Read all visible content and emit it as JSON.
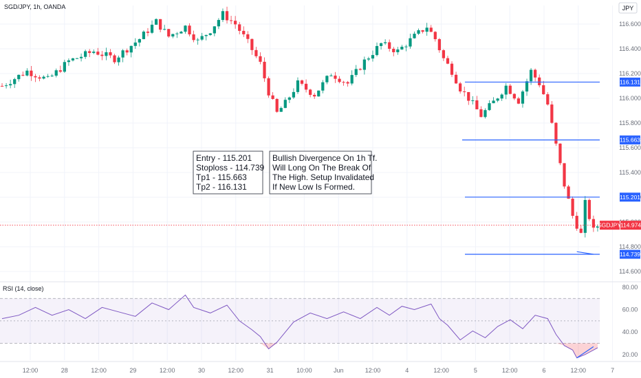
{
  "chart_data": [
    {
      "type": "candlestick",
      "title": "SGD/JPY, 1h, OANDA",
      "currency_button": "JPY",
      "ylim": [
        114.55,
        116.75
      ],
      "y_ticks": [
        114.6,
        114.8,
        115.0,
        115.2,
        115.4,
        115.6,
        115.8,
        116.0,
        116.2,
        116.4,
        116.6
      ],
      "y_tick_labels": [
        "114.600",
        "114.800",
        "115.000",
        "115.200",
        "115.400",
        "115.600",
        "115.800",
        "116.000",
        "116.200",
        "116.400",
        "116.600"
      ],
      "x_tick_labels": [
        "12:00",
        "28",
        "12:00",
        "29",
        "12:00",
        "30",
        "12:00",
        "31",
        "10:00",
        "Jun",
        "12:00",
        "4",
        "12:00",
        "5",
        "12:00",
        "6",
        "12:00",
        "7"
      ],
      "colors": {
        "up": "#089981",
        "down": "#f23645",
        "level": "#2962ff",
        "current": "#f23645"
      },
      "close_path": [
        [
          0,
          116.1
        ],
        [
          6,
          116.22
        ],
        [
          11,
          116.15
        ],
        [
          16,
          116.3
        ],
        [
          22,
          116.38
        ],
        [
          27,
          116.32
        ],
        [
          33,
          116.48
        ],
        [
          37,
          116.62
        ],
        [
          40,
          116.5
        ],
        [
          44,
          116.58
        ],
        [
          47,
          116.46
        ],
        [
          50,
          116.55
        ],
        [
          53,
          116.68
        ],
        [
          56,
          116.6
        ],
        [
          59,
          116.45
        ],
        [
          62,
          116.28
        ],
        [
          64,
          116.05
        ],
        [
          66,
          115.88
        ],
        [
          68,
          115.96
        ],
        [
          71,
          116.12
        ],
        [
          75,
          116.03
        ],
        [
          79,
          116.2
        ],
        [
          83,
          116.12
        ],
        [
          87,
          116.3
        ],
        [
          91,
          116.44
        ],
        [
          95,
          116.38
        ],
        [
          99,
          116.5
        ],
        [
          102,
          116.58
        ],
        [
          104,
          116.48
        ],
        [
          106,
          116.32
        ],
        [
          108,
          116.22
        ],
        [
          110,
          116.08
        ],
        [
          112,
          116.0
        ],
        [
          115,
          115.86
        ],
        [
          118,
          115.97
        ],
        [
          121,
          116.1
        ],
        [
          124,
          115.98
        ],
        [
          127,
          116.22
        ],
        [
          129,
          116.12
        ],
        [
          131,
          115.95
        ],
        [
          133,
          115.62
        ],
        [
          135,
          115.3
        ],
        [
          137,
          115.05
        ],
        [
          139,
          114.9
        ],
        [
          140,
          115.15
        ],
        [
          142,
          114.93
        ],
        [
          143,
          114.97
        ]
      ],
      "levels": [
        {
          "name": "Tp2",
          "value": 116.131,
          "label": "116.131"
        },
        {
          "name": "Tp1",
          "value": 115.663,
          "label": "115.663"
        },
        {
          "name": "Entry",
          "value": 115.201,
          "label": "115.201"
        },
        {
          "name": "Stoploss",
          "value": 114.739,
          "label": "114.739"
        }
      ],
      "current_price": {
        "symbol": "SGDJPY",
        "value": 114.974,
        "label": "114.974"
      },
      "divergence_line": [
        [
          138,
          114.76
        ],
        [
          142,
          114.739
        ]
      ],
      "notes": [
        [
          "Entry - 115.201",
          "Stoploss - 114.739",
          "Tp1 - 115.663",
          "Tp2 - 116.131"
        ],
        [
          "Bullish Divergence On 1h Tf.",
          "Will Long On The Break Of",
          "The High. Setup Invalidated",
          "If New Low Is Formed."
        ]
      ]
    },
    {
      "type": "line",
      "title": "RSI (14, close)",
      "ylim": [
        15,
        83
      ],
      "y_ticks": [
        20,
        40,
        60,
        80
      ],
      "y_tick_labels": [
        "20.00",
        "40.00",
        "60.00",
        "80.00"
      ],
      "bands": [
        30,
        50,
        70
      ],
      "band_fill": "#7e57c2",
      "line_color": "#7e57c2",
      "path": [
        [
          0,
          52
        ],
        [
          4,
          55
        ],
        [
          8,
          62
        ],
        [
          12,
          55
        ],
        [
          16,
          60
        ],
        [
          20,
          52
        ],
        [
          24,
          62
        ],
        [
          28,
          58
        ],
        [
          32,
          54
        ],
        [
          36,
          66
        ],
        [
          40,
          60
        ],
        [
          44,
          73
        ],
        [
          46,
          62
        ],
        [
          50,
          57
        ],
        [
          54,
          64
        ],
        [
          57,
          50
        ],
        [
          60,
          42
        ],
        [
          62,
          36
        ],
        [
          64,
          25
        ],
        [
          66,
          31
        ],
        [
          70,
          49
        ],
        [
          74,
          57
        ],
        [
          78,
          52
        ],
        [
          82,
          58
        ],
        [
          86,
          52
        ],
        [
          90,
          62
        ],
        [
          93,
          55
        ],
        [
          96,
          63
        ],
        [
          99,
          60
        ],
        [
          103,
          65
        ],
        [
          105,
          52
        ],
        [
          107,
          46
        ],
        [
          110,
          33
        ],
        [
          113,
          41
        ],
        [
          116,
          35
        ],
        [
          119,
          45
        ],
        [
          122,
          51
        ],
        [
          125,
          43
        ],
        [
          128,
          55
        ],
        [
          131,
          52
        ],
        [
          133,
          38
        ],
        [
          135,
          28
        ],
        [
          137,
          24
        ],
        [
          138,
          17
        ],
        [
          140,
          20
        ],
        [
          142,
          24
        ],
        [
          143,
          26
        ]
      ],
      "divergence_line": [
        [
          138,
          17
        ],
        [
          142,
          27
        ]
      ]
    }
  ]
}
